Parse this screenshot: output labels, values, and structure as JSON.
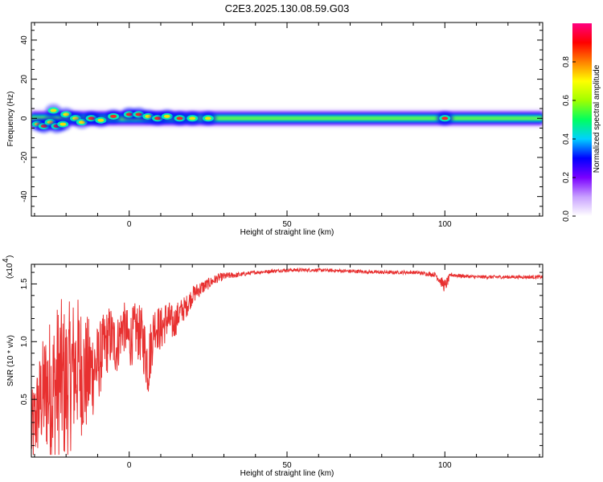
{
  "chart_data": [
    {
      "type": "heatmap",
      "title": "C2E3.2025.130.08.59.G03",
      "xlabel": "Height of straight line (km)",
      "ylabel": "Frequency (Hz)",
      "xlim": [
        -31,
        131
      ],
      "ylim": [
        -50,
        49
      ],
      "xticks": [
        0,
        50,
        100
      ],
      "yticks": [
        -40,
        -20,
        0,
        20,
        40
      ],
      "colorbar": {
        "label": "Normalized spectral amplitude",
        "range": [
          0,
          1
        ],
        "ticks": [
          "0.0",
          "0.2",
          "0.4",
          "0.6",
          "0.8"
        ],
        "colors": [
          "#ffffff",
          "#c8a0ff",
          "#7a00ff",
          "#0000ff",
          "#00d0ff",
          "#00ff60",
          "#a0ff00",
          "#ffff00",
          "#ff8000",
          "#ff0000",
          "#ff0080"
        ]
      },
      "ridge": {
        "center_hz": 0,
        "blobs": [
          {
            "x": -29,
            "y": -3,
            "a": 0.75
          },
          {
            "x": -27,
            "y": -4,
            "a": 0.85
          },
          {
            "x": -25,
            "y": -2,
            "a": 0.7
          },
          {
            "x": -23,
            "y": -4,
            "a": 0.8
          },
          {
            "x": -21,
            "y": -3,
            "a": 0.75
          },
          {
            "x": -24,
            "y": 4,
            "a": 0.55
          },
          {
            "x": -20,
            "y": 2,
            "a": 0.6
          },
          {
            "x": -17,
            "y": 0,
            "a": 0.7
          },
          {
            "x": -15,
            "y": -2,
            "a": 0.5
          },
          {
            "x": -12,
            "y": 0,
            "a": 0.85
          },
          {
            "x": -9,
            "y": -1,
            "a": 0.7
          },
          {
            "x": -5,
            "y": 1,
            "a": 0.8
          },
          {
            "x": 0,
            "y": 2,
            "a": 0.85
          },
          {
            "x": 3,
            "y": 2,
            "a": 0.8
          },
          {
            "x": 6,
            "y": 1,
            "a": 0.75
          },
          {
            "x": 9,
            "y": 0,
            "a": 0.8
          },
          {
            "x": 12,
            "y": 1,
            "a": 0.75
          },
          {
            "x": 16,
            "y": 0,
            "a": 0.8
          },
          {
            "x": 20,
            "y": 0,
            "a": 0.7
          },
          {
            "x": 25,
            "y": 0,
            "a": 0.75
          },
          {
            "x": 100,
            "y": 0,
            "a": 0.8
          }
        ]
      }
    },
    {
      "type": "line",
      "xlabel": "Height of straight line (km)",
      "ylabel": "SNR (10 * v/v)",
      "y_multiplier_label": "(x10",
      "y_multiplier_exp": "4",
      "xlim": [
        -31,
        131
      ],
      "ylim": [
        0,
        1.67
      ],
      "xticks": [
        0,
        50,
        100
      ],
      "yticks": [
        0.5,
        1.0,
        1.5
      ],
      "ytick_labels": [
        "0.5",
        "1.0",
        "1.5"
      ],
      "color": "#e83030",
      "x": [
        -31,
        -28,
        -26,
        -24,
        -22,
        -20,
        -18,
        -16,
        -14,
        -12,
        -10,
        -8,
        -6,
        -4,
        -2,
        0,
        2,
        4,
        6,
        8,
        10,
        12,
        14,
        16,
        18,
        20,
        22,
        25,
        28,
        31,
        35,
        40,
        45,
        50,
        60,
        70,
        80,
        90,
        97,
        100,
        102,
        105,
        110,
        120,
        131
      ],
      "y": [
        0.2,
        0.5,
        0.6,
        0.55,
        0.7,
        0.6,
        0.75,
        0.8,
        0.7,
        0.75,
        0.8,
        0.95,
        1.05,
        0.95,
        1.15,
        1.0,
        1.1,
        1.05,
        0.8,
        1.15,
        1.1,
        1.2,
        1.15,
        1.25,
        1.3,
        1.4,
        1.45,
        1.5,
        1.55,
        1.57,
        1.58,
        1.6,
        1.61,
        1.62,
        1.62,
        1.61,
        1.6,
        1.6,
        1.58,
        1.48,
        1.58,
        1.57,
        1.56,
        1.56,
        1.56
      ],
      "noise_amplitude": [
        0.35,
        0.45,
        0.6,
        0.7,
        0.7,
        0.7,
        0.65,
        0.6,
        0.55,
        0.45,
        0.35,
        0.3,
        0.28,
        0.25,
        0.22,
        0.25,
        0.25,
        0.25,
        0.3,
        0.2,
        0.2,
        0.18,
        0.15,
        0.12,
        0.1,
        0.08,
        0.07,
        0.05,
        0.04,
        0.03,
        0.02,
        0.015,
        0.015,
        0.015,
        0.015,
        0.015,
        0.015,
        0.015,
        0.02,
        0.06,
        0.02,
        0.015,
        0.015,
        0.015,
        0.015
      ]
    }
  ]
}
